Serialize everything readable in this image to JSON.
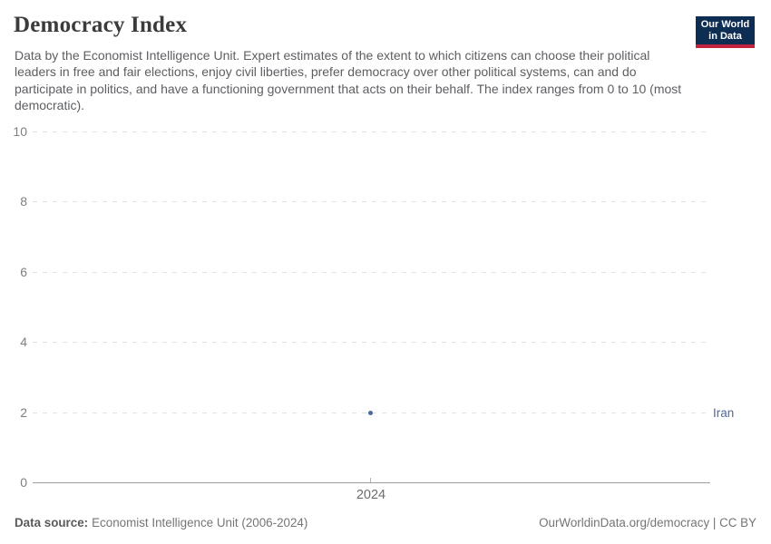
{
  "header": {
    "title": "Democracy Index",
    "subtitle": "Data by the Economist Intelligence Unit. Expert estimates of the extent to which citizens can choose their political leaders in free and fair elections, enjoy civil liberties, prefer democracy over other political systems, can and do participate in politics, and have a functioning government that acts on their behalf. The index ranges from 0 to 10 (most democratic).",
    "logo": {
      "line1": "Our World",
      "line2": "in Data",
      "bg_color": "#0d2e52",
      "accent_color": "#c1233f"
    }
  },
  "chart_data": {
    "type": "scatter",
    "title": "Democracy Index",
    "x": [
      2024
    ],
    "series": [
      {
        "name": "Iran",
        "values": [
          1.96
        ],
        "color": "#4c6a9c"
      }
    ],
    "xlabel": "",
    "ylabel": "",
    "ylim": [
      0,
      10
    ],
    "yticks": [
      0,
      2,
      4,
      6,
      8,
      10
    ],
    "xticks": [
      "2024"
    ],
    "grid": "horizontal-dashed",
    "legend_position": "right-entity-label",
    "entity_label": "Iran"
  },
  "footer": {
    "source_label": "Data source:",
    "source_text": "Economist Intelligence Unit (2006-2024)",
    "link_text": "OurWorldinData.org/democracy | CC BY"
  }
}
